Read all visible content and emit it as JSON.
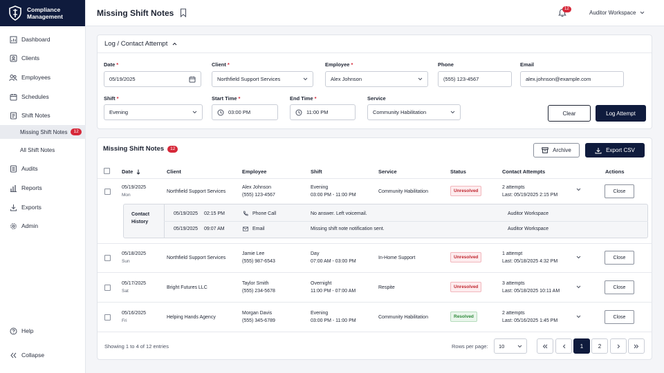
{
  "brand": {
    "line1": "Compliance",
    "line2": "Management"
  },
  "sidebar": {
    "items": [
      {
        "label": "Dashboard",
        "icon": "dashboard-icon"
      },
      {
        "label": "Clients",
        "icon": "clients-icon"
      },
      {
        "label": "Employees",
        "icon": "employees-icon"
      },
      {
        "label": "Schedules",
        "icon": "calendar-icon"
      },
      {
        "label": "Shift Notes",
        "icon": "notes-icon"
      },
      {
        "label": "Audits",
        "icon": "audit-icon"
      },
      {
        "label": "Reports",
        "icon": "reports-icon"
      },
      {
        "label": "Exports",
        "icon": "download-icon"
      },
      {
        "label": "Admin",
        "icon": "gear-icon"
      }
    ],
    "sub_items": [
      {
        "label": "Missing Shift Notes",
        "badge": "12",
        "active": true
      },
      {
        "label": "All Shift Notes"
      }
    ],
    "help": "Help",
    "collapse": "Collapse"
  },
  "header": {
    "title": "Missing Shift Notes",
    "notif_count": "12",
    "workspace": "Auditor Workspace"
  },
  "form": {
    "title": "Log / Contact Attempt",
    "date_label": "Date",
    "date_value": "05/19/2025",
    "client_label": "Client",
    "client_value": "Northfield Support Services",
    "employee_label": "Employee",
    "employee_value": "Alex Johnson",
    "phone_label": "Phone",
    "phone_value": "(555) 123-4567",
    "email_label": "Email",
    "email_value": "alex.johnson@example.com",
    "shift_label": "Shift",
    "shift_value": "Evening",
    "start_label": "Start Time",
    "start_value": "03:00 PM",
    "end_label": "End Time",
    "end_value": "11:00 PM",
    "service_label": "Service",
    "service_value": "Community Habilitation",
    "clear": "Clear",
    "log": "Log Attempt"
  },
  "table": {
    "title": "Missing Shift Notes",
    "count": "12",
    "archive": "Archive",
    "export": "Export CSV",
    "columns": [
      "Date",
      "Client",
      "Employee",
      "Shift",
      "Service",
      "Status",
      "Contact Attempts",
      "Actions"
    ],
    "rows": [
      {
        "date": "05/19/2025",
        "day": "Mon",
        "client": "Northfield Support Services",
        "employee": "Alex Johnson",
        "phone": "(555) 123-4567",
        "shift": "Evening",
        "time": "03:00 PM - 11:00 PM",
        "service": "Community Habilitation",
        "status": "Unresolved",
        "attempts": "2 attempts",
        "last": "Last: 05/19/2025 2:15 PM",
        "action": "Close"
      },
      {
        "date": "05/18/2025",
        "day": "Sun",
        "client": "Northfield Support Services",
        "employee": "Jamie Lee",
        "phone": "(555) 987-6543",
        "shift": "Day",
        "time": "07:00 AM - 03:00 PM",
        "service": "In-Home Support",
        "status": "Unresolved",
        "attempts": "1 attempt",
        "last": "Last: 05/18/2025 4:32 PM",
        "action": "Close"
      },
      {
        "date": "05/17/2025",
        "day": "Sat",
        "client": "Bright Futures LLC",
        "employee": "Taylor Smith",
        "phone": "(555) 234-5678",
        "shift": "Overnight",
        "time": "11:00 PM - 07:00 AM",
        "service": "Respite",
        "status": "Unresolved",
        "attempts": "3 attempts",
        "last": "Last: 05/18/2025 10:11 AM",
        "action": "Close"
      },
      {
        "date": "05/16/2025",
        "day": "Fri",
        "client": "Helping Hands Agency",
        "employee": "Morgan Davis",
        "phone": "(555) 345-6789",
        "shift": "Evening",
        "time": "03:00 PM - 11:00 PM",
        "service": "Community Habilitation",
        "status": "Resolved",
        "attempts": "2 attempts",
        "last": "Last: 05/16/2025 1:45 PM",
        "action": "Close"
      }
    ],
    "history": {
      "label1": "Contact",
      "label2": "History",
      "entries": [
        {
          "date": "05/19/2025",
          "time": "02:15 PM",
          "method": "Phone Call",
          "note": "No answer. Left voicemail.",
          "by": "Auditor Workspace"
        },
        {
          "date": "05/19/2025",
          "time": "09:07 AM",
          "method": "Email",
          "note": "Missing shift note notification sent.",
          "by": "Auditor Workspace"
        }
      ]
    },
    "footer": {
      "showing": "Showing 1 to 4 of 12 entries",
      "rows_per_page_label": "Rows per page:",
      "rows_per_page": "10",
      "pages": [
        "1",
        "2"
      ]
    }
  },
  "colors": {
    "navy": "#0f1b3d",
    "danger": "#d62839",
    "success": "#2f8a3a"
  }
}
